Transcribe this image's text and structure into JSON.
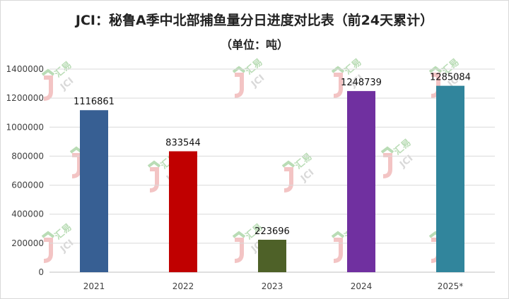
{
  "title": "JCI：秘鲁A季中北部捕鱼量分日进度对比表（前24天累计）",
  "subtitle": "（单位：吨）",
  "watermark": {
    "cn": "汇易",
    "en": "JCI",
    "colors": {
      "red": "#f3c4c4",
      "green": "#b9dcb5",
      "grey": "#d9d9d9"
    }
  },
  "chart_data": {
    "type": "bar",
    "title": "JCI：秘鲁A季中北部捕鱼量分日进度对比表（前24天累计）",
    "subtitle": "（单位：吨）",
    "categories": [
      "2021",
      "2022",
      "2023",
      "2024",
      "2025*"
    ],
    "values": [
      1116861,
      833544,
      223696,
      1248739,
      1285084
    ],
    "data_labels": [
      "1116861",
      "833544",
      "223696",
      "1248739",
      "1285084"
    ],
    "colors": [
      "#375f93",
      "#c00000",
      "#4e6128",
      "#7030a0",
      "#31859c"
    ],
    "ylim": [
      0,
      1400000
    ],
    "yticks": [
      0,
      200000,
      400000,
      600000,
      800000,
      1000000,
      1200000,
      1400000
    ],
    "ytick_labels": [
      "0",
      "200000",
      "400000",
      "600000",
      "800000",
      "1000000",
      "1200000",
      "1400000"
    ],
    "grid": true,
    "legend": "none"
  }
}
